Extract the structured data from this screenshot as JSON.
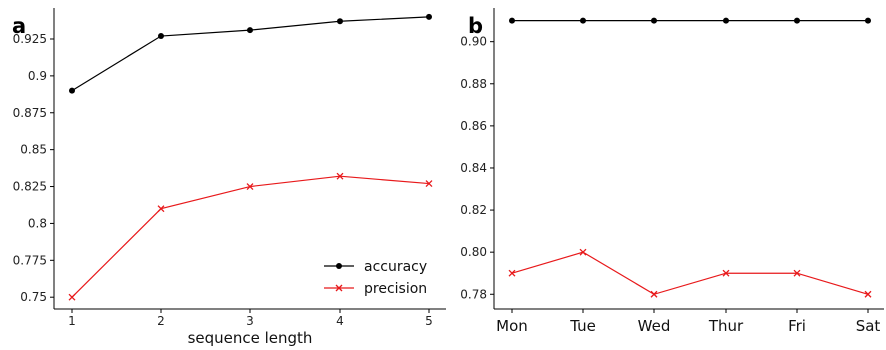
{
  "chart_data": [
    {
      "type": "line",
      "panel_label": "a",
      "xlabel": "sequence length",
      "ylabel": "",
      "x": [
        1,
        2,
        3,
        4,
        5
      ],
      "x_ticks": [
        "1",
        "2",
        "3",
        "4",
        "5"
      ],
      "y_ticks": [
        "0.75",
        "0.775",
        "0.8",
        "0.825",
        "0.85",
        "0.875",
        "0.9",
        "0.925"
      ],
      "ylim": [
        0.742,
        0.946
      ],
      "series": [
        {
          "name": "accuracy",
          "color": "#000000",
          "marker": "dot",
          "values": [
            0.89,
            0.927,
            0.931,
            0.937,
            0.94
          ]
        },
        {
          "name": "precision",
          "color": "#e8191b",
          "marker": "x",
          "values": [
            0.75,
            0.81,
            0.825,
            0.832,
            0.827
          ]
        }
      ],
      "legend": {
        "position": "bottom-right"
      }
    },
    {
      "type": "line",
      "panel_label": "b",
      "xlabel": "",
      "ylabel": "",
      "categories": [
        "Mon",
        "Tue",
        "Wed",
        "Thur",
        "Fri",
        "Sat"
      ],
      "y_ticks": [
        "0.78",
        "0.80",
        "0.82",
        "0.84",
        "0.86",
        "0.88",
        "0.90"
      ],
      "ylim": [
        0.773,
        0.916
      ],
      "series": [
        {
          "name": "accuracy",
          "color": "#000000",
          "marker": "dot",
          "values": [
            0.91,
            0.91,
            0.91,
            0.91,
            0.91,
            0.91
          ]
        },
        {
          "name": "precision",
          "color": "#e8191b",
          "marker": "x",
          "values": [
            0.79,
            0.8,
            0.78,
            0.79,
            0.79,
            0.78
          ]
        }
      ]
    }
  ]
}
